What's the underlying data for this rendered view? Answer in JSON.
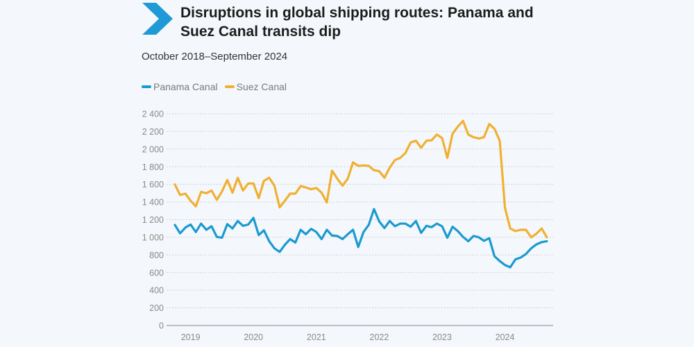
{
  "header": {
    "title": "Disruptions in global shipping routes: Panama and Suez Canal transits dip",
    "subtitle": "October 2018–September 2024",
    "logo_icon": "chevron-right-icon",
    "logo_color": "#1e9ad6"
  },
  "chart_data": {
    "type": "line",
    "title": "Disruptions in global shipping routes: Panama and Suez Canal transits dip",
    "subtitle": "October 2018–September 2024",
    "xlabel": "",
    "ylabel": "",
    "ylim": [
      0,
      2400
    ],
    "y_ticks": [
      0,
      200,
      400,
      600,
      800,
      1000,
      1200,
      1400,
      1600,
      1800,
      2000,
      2200,
      2400
    ],
    "y_tick_labels": [
      "0",
      "200",
      "400",
      "600",
      "800",
      "1 000",
      "1 200",
      "1 400",
      "1 600",
      "1 800",
      "2 000",
      "2 200",
      "2 400"
    ],
    "x_tick_labels": [
      "2019",
      "2020",
      "2021",
      "2022",
      "2023",
      "2024"
    ],
    "x_tick_months": [
      "2019-01",
      "2020-01",
      "2021-01",
      "2022-01",
      "2023-01",
      "2024-01"
    ],
    "grid": "horizontal dotted",
    "legend": "top-left",
    "x": [
      "2018-10",
      "2018-11",
      "2018-12",
      "2019-01",
      "2019-02",
      "2019-03",
      "2019-04",
      "2019-05",
      "2019-06",
      "2019-07",
      "2019-08",
      "2019-09",
      "2019-10",
      "2019-11",
      "2019-12",
      "2020-01",
      "2020-02",
      "2020-03",
      "2020-04",
      "2020-05",
      "2020-06",
      "2020-07",
      "2020-08",
      "2020-09",
      "2020-10",
      "2020-11",
      "2020-12",
      "2021-01",
      "2021-02",
      "2021-03",
      "2021-04",
      "2021-05",
      "2021-06",
      "2021-07",
      "2021-08",
      "2021-09",
      "2021-10",
      "2021-11",
      "2021-12",
      "2022-01",
      "2022-02",
      "2022-03",
      "2022-04",
      "2022-05",
      "2022-06",
      "2022-07",
      "2022-08",
      "2022-09",
      "2022-10",
      "2022-11",
      "2022-12",
      "2023-01",
      "2023-02",
      "2023-03",
      "2023-04",
      "2023-05",
      "2023-06",
      "2023-07",
      "2023-08",
      "2023-09",
      "2023-10",
      "2023-11",
      "2023-12",
      "2024-01",
      "2024-02",
      "2024-03",
      "2024-04",
      "2024-05",
      "2024-06",
      "2024-07",
      "2024-08",
      "2024-09"
    ],
    "series": [
      {
        "name": "Panama Canal",
        "color": "#1a9ad0",
        "values": [
          1140,
          1045,
          1110,
          1145,
          1060,
          1155,
          1085,
          1125,
          1005,
          995,
          1150,
          1100,
          1185,
          1130,
          1145,
          1220,
          1025,
          1080,
          955,
          875,
          835,
          915,
          980,
          940,
          1085,
          1035,
          1095,
          1060,
          980,
          1085,
          1020,
          1015,
          980,
          1035,
          1085,
          890,
          1060,
          1140,
          1320,
          1180,
          1105,
          1185,
          1125,
          1155,
          1155,
          1120,
          1185,
          1050,
          1130,
          1115,
          1155,
          1125,
          995,
          1120,
          1070,
          1005,
          955,
          1015,
          1000,
          960,
          990,
          785,
          730,
          685,
          660,
          750,
          770,
          810,
          875,
          920,
          945,
          955
        ]
      },
      {
        "name": "Suez Canal",
        "color": "#f0b030",
        "values": [
          1600,
          1480,
          1495,
          1415,
          1350,
          1515,
          1500,
          1530,
          1425,
          1520,
          1650,
          1505,
          1675,
          1530,
          1610,
          1610,
          1445,
          1640,
          1675,
          1585,
          1340,
          1415,
          1495,
          1495,
          1580,
          1565,
          1545,
          1560,
          1505,
          1395,
          1755,
          1665,
          1585,
          1665,
          1850,
          1810,
          1815,
          1810,
          1760,
          1750,
          1675,
          1790,
          1875,
          1900,
          1955,
          2075,
          2095,
          2015,
          2095,
          2100,
          2165,
          2125,
          1900,
          2175,
          2255,
          2320,
          2165,
          2135,
          2120,
          2135,
          2285,
          2230,
          2095,
          1335,
          1100,
          1070,
          1085,
          1085,
          1000,
          1040,
          1100,
          1000
        ]
      }
    ]
  }
}
